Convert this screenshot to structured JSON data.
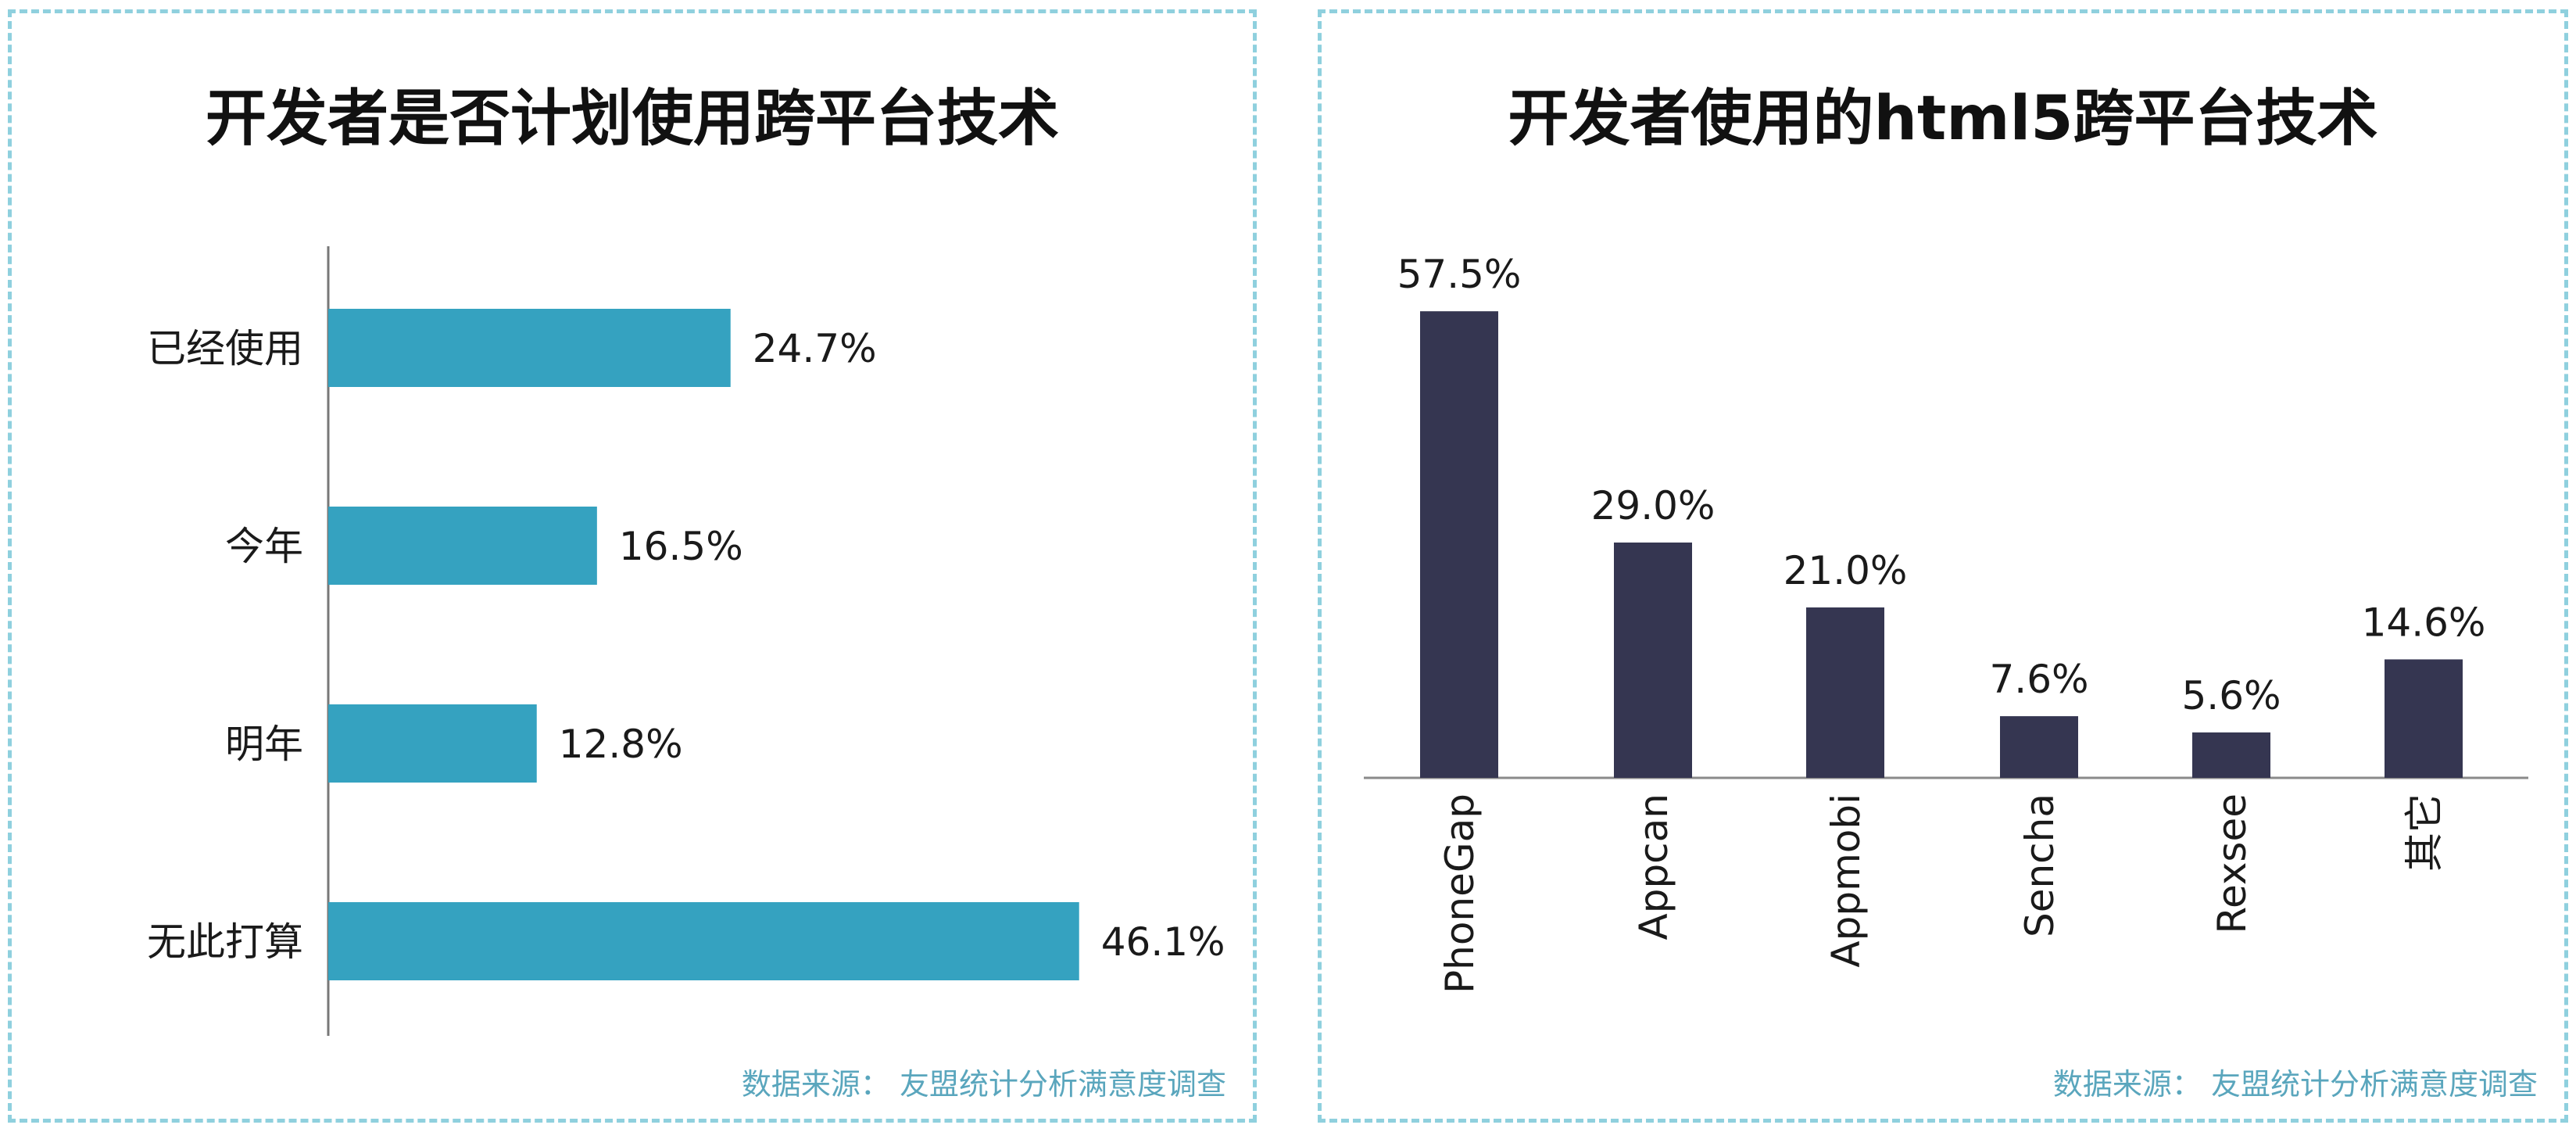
{
  "chart_data": [
    {
      "type": "bar",
      "orientation": "horizontal",
      "title": "开发者是否计划使用跨平台技术",
      "categories": [
        "已经使用",
        "今年",
        "明年",
        "无此打算"
      ],
      "values": [
        24.7,
        16.5,
        12.8,
        46.1
      ],
      "value_labels": [
        "24.7%",
        "16.5%",
        "12.8%",
        "46.1%"
      ],
      "unit": "%",
      "color": "#35a2c0",
      "xlim": [
        0,
        50
      ],
      "grid": false,
      "legend": "none",
      "source": "数据来源： 友盟统计分析满意度调查"
    },
    {
      "type": "bar",
      "orientation": "vertical",
      "title": "开发者使用的html5跨平台技术",
      "categories": [
        "PhoneGap",
        "Appcan",
        "Appmobi",
        "Sencha",
        "Rexsee",
        "其它"
      ],
      "values": [
        57.5,
        29.0,
        21.0,
        7.6,
        5.6,
        14.6
      ],
      "value_labels": [
        "57.5%",
        "29.0%",
        "21.0%",
        "7.6%",
        "5.6%",
        "14.6%"
      ],
      "unit": "%",
      "color": "#353651",
      "ylim": [
        0,
        60
      ],
      "grid": false,
      "legend": "none",
      "source": "数据来源： 友盟统计分析满意度调查"
    }
  ]
}
